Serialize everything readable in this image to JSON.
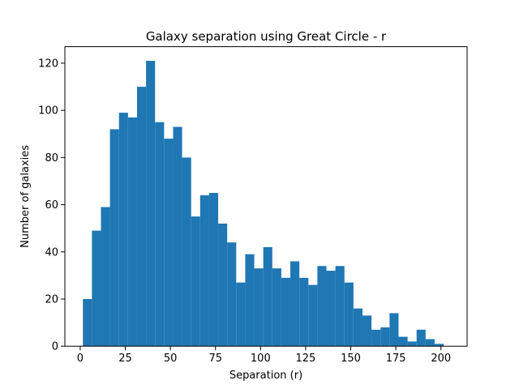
{
  "chart_data": {
    "type": "bar",
    "title": "Galaxy separation using Great Circle - r",
    "xlabel": "Separation (r)",
    "ylabel": "Number of galaxies",
    "xlim": [
      -8.5,
      214.5
    ],
    "ylim": [
      0,
      127
    ],
    "xticks": [
      0,
      25,
      50,
      75,
      100,
      125,
      150,
      175,
      200
    ],
    "yticks": [
      0,
      20,
      40,
      60,
      80,
      100,
      120
    ],
    "grid": false,
    "bar_color": "#1f77b4",
    "bin_start": 1.5,
    "bin_width": 5.0,
    "values": [
      20,
      49,
      59,
      92,
      99,
      97,
      110,
      121,
      95,
      88,
      93,
      80,
      55,
      64,
      65,
      52,
      44,
      27,
      39,
      33,
      42,
      33,
      29,
      36,
      29,
      26,
      34,
      32,
      34,
      27,
      16,
      13,
      7,
      8,
      14,
      4,
      2,
      7,
      3,
      1
    ]
  }
}
